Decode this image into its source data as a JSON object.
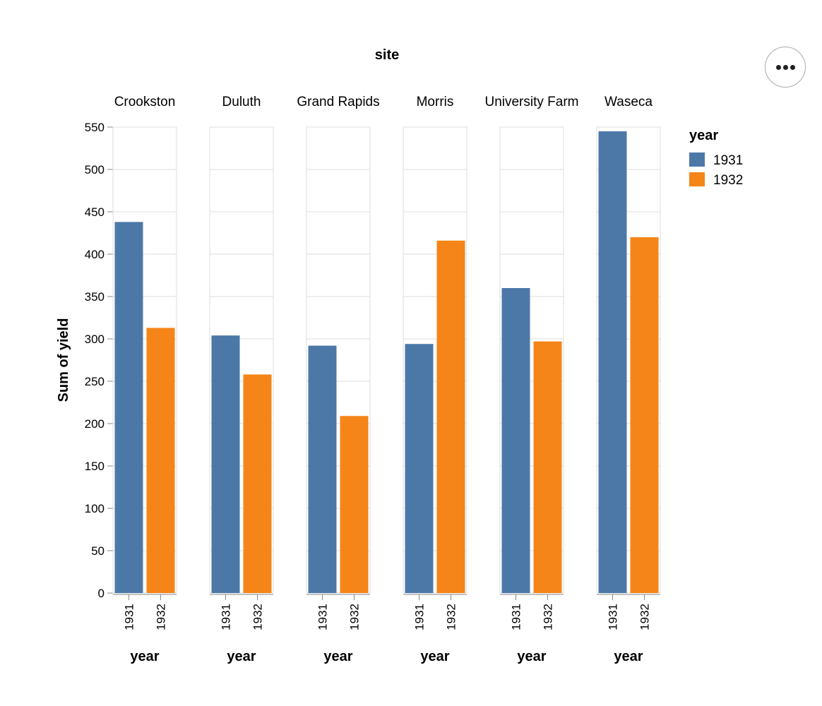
{
  "chart_data": {
    "type": "bar",
    "title": "site",
    "facet_field": "site",
    "facets": [
      "Crookston",
      "Duluth",
      "Grand Rapids",
      "Morris",
      "University Farm",
      "Waseca"
    ],
    "categories": [
      "1931",
      "1932"
    ],
    "xlabel": "year",
    "ylabel": "Sum of yield",
    "ylim": [
      0,
      550
    ],
    "yticks": [
      0,
      50,
      100,
      150,
      200,
      250,
      300,
      350,
      400,
      450,
      500,
      550
    ],
    "grid": true,
    "values": [
      {
        "site": "Crookston",
        "values": [
          438,
          313
        ]
      },
      {
        "site": "Duluth",
        "values": [
          304,
          258
        ]
      },
      {
        "site": "Grand Rapids",
        "values": [
          292,
          209
        ]
      },
      {
        "site": "Morris",
        "values": [
          294,
          416
        ]
      },
      {
        "site": "University Farm",
        "values": [
          360,
          297
        ]
      },
      {
        "site": "Waseca",
        "values": [
          545,
          420
        ]
      }
    ],
    "legend": {
      "title": "year",
      "placement": "right",
      "items": [
        {
          "label": "1931",
          "color": "#4c78a8"
        },
        {
          "label": "1932",
          "color": "#f58518"
        }
      ]
    }
  },
  "actions_icon": "more-horizontal-icon"
}
